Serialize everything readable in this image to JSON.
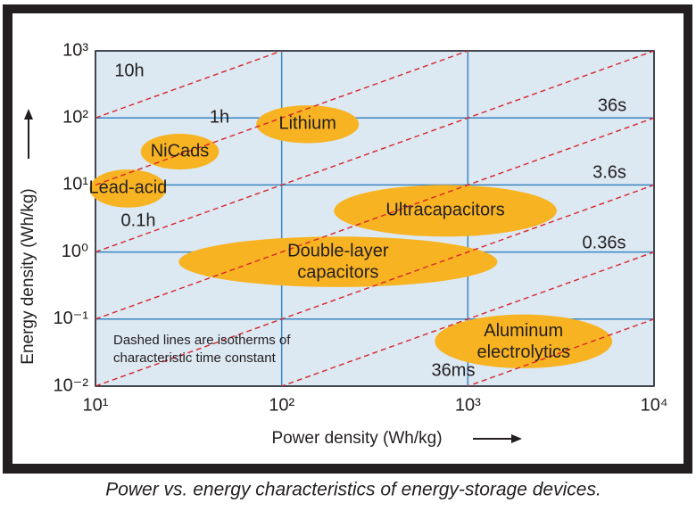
{
  "chart_data": {
    "type": "region",
    "x_label": "Power density (Wh/kg)",
    "y_label": "Energy density (Wh/kg)",
    "caption": "Power vs. energy characteristics of energy-storage devices.",
    "note_lines": [
      "Dashed lines are isotherms of",
      "characteristic time constant"
    ],
    "x_log": true,
    "y_log": true,
    "grid": true,
    "xlim": [
      10,
      10000
    ],
    "ylim": [
      0.01,
      1000
    ],
    "xticks": [
      {
        "value": 10,
        "label": "10¹"
      },
      {
        "value": 100,
        "label": "10²"
      },
      {
        "value": 1000,
        "label": "10³"
      },
      {
        "value": 10000,
        "label": "10⁴"
      }
    ],
    "yticks": [
      {
        "value": 0.01,
        "label": "10⁻²"
      },
      {
        "value": 0.1,
        "label": "10⁻¹"
      },
      {
        "value": 1,
        "label": "10⁰"
      },
      {
        "value": 10,
        "label": "10¹"
      },
      {
        "value": 100,
        "label": "10²"
      },
      {
        "value": 1000,
        "label": "10³"
      }
    ],
    "region_color": "#f8b322",
    "isotherm_color": "#d8262c",
    "grid_color": "#3a86c2",
    "plot_background": "#dce8f2",
    "regions": [
      {
        "name": "Lithium",
        "x": [
          73,
          260
        ],
        "y": [
          42,
          154
        ]
      },
      {
        "name": "NiCads",
        "x": [
          17.5,
          46
        ],
        "y": [
          17,
          58
        ]
      },
      {
        "name": "Lead-acid",
        "x": [
          9.3,
          24
        ],
        "y": [
          4.6,
          17
        ]
      },
      {
        "name": "Ultracapacitors",
        "x": [
          191,
          3000
        ],
        "y": [
          1.7,
          10
        ]
      },
      {
        "name": "Double-layer capacitors",
        "x": [
          28,
          1440
        ],
        "y": [
          0.3,
          1.7
        ]
      },
      {
        "name": "Aluminum electrolytics",
        "x": [
          665,
          5960
        ],
        "y": [
          0.0185,
          0.117
        ]
      }
    ],
    "isotherms": [
      {
        "hours": 10,
        "label": "10h"
      },
      {
        "hours": 1,
        "label": "1h"
      },
      {
        "hours": 0.1,
        "label": "0.1h"
      },
      {
        "hours": 0.01,
        "label": "36s"
      },
      {
        "hours": 0.001,
        "label": "3.6s"
      },
      {
        "hours": 0.0001,
        "label": "0.36s"
      },
      {
        "hours": 1e-05,
        "label": "36ms"
      }
    ]
  }
}
